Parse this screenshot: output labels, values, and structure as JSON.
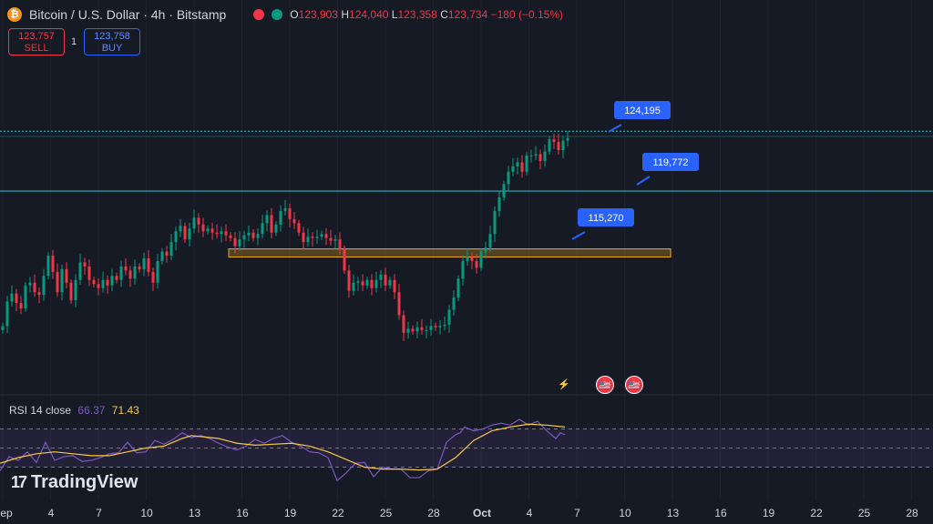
{
  "header": {
    "coin_icon": "₿",
    "title": "Bitcoin / U.S. Dollar · 4h · Bitstamp",
    "ohlc": {
      "o_label": "O",
      "o": "123,903",
      "h_label": "H",
      "h": "124,040",
      "l_label": "L",
      "l": "123,358",
      "c_label": "C",
      "c": "123,734",
      "change": "−180 (−0.15%)"
    }
  },
  "trade": {
    "sell_price": "123,757",
    "sell_label": "SELL",
    "qty": "1",
    "buy_price": "123,758",
    "buy_label": "BUY"
  },
  "rsi": {
    "name": "RSI 14 close",
    "value": "66.37",
    "ma_value": "71.43"
  },
  "logo": {
    "text": "TradingView",
    "mark": "17"
  },
  "events": {
    "a": "⚡",
    "b": "🇺🇸",
    "c": "🇺🇸"
  },
  "axis": {
    "labels": [
      "ep",
      "4",
      "7",
      "10",
      "13",
      "16",
      "19",
      "22",
      "25",
      "28",
      "Oct",
      "4",
      "7",
      "10",
      "13",
      "16",
      "19",
      "22",
      "25",
      "28"
    ]
  },
  "colors": {
    "up": "#089981",
    "down": "#f23645",
    "level": "#26c6da",
    "zone": "#f0a81e",
    "rsi": "#7e57c2",
    "rsi_ma": "#f7c948",
    "tag": "#2962ff"
  },
  "chart_data": {
    "type": "candlestick",
    "title": "Bitcoin / U.S. Dollar · 4h · Bitstamp",
    "y_range": [
      107000,
      126500
    ],
    "close_path": [
      [
        0,
        109800
      ],
      [
        5,
        111600
      ],
      [
        10,
        112200
      ],
      [
        15,
        111500
      ],
      [
        20,
        111100
      ],
      [
        25,
        112800
      ],
      [
        30,
        113000
      ],
      [
        35,
        112300
      ],
      [
        40,
        112100
      ],
      [
        45,
        113500
      ],
      [
        50,
        115000
      ],
      [
        55,
        113800
      ],
      [
        60,
        112300
      ],
      [
        65,
        114000
      ],
      [
        70,
        113000
      ],
      [
        75,
        111700
      ],
      [
        80,
        113200
      ],
      [
        85,
        114500
      ],
      [
        90,
        114200
      ],
      [
        95,
        113200
      ],
      [
        100,
        112900
      ],
      [
        105,
        112600
      ],
      [
        110,
        113200
      ],
      [
        115,
        112800
      ],
      [
        120,
        113500
      ],
      [
        125,
        113200
      ],
      [
        130,
        114200
      ],
      [
        135,
        113900
      ],
      [
        140,
        113300
      ],
      [
        145,
        114200
      ],
      [
        150,
        114000
      ],
      [
        155,
        114800
      ],
      [
        160,
        113800
      ],
      [
        165,
        113000
      ],
      [
        170,
        114600
      ],
      [
        175,
        115300
      ],
      [
        180,
        115000
      ],
      [
        185,
        116000
      ],
      [
        190,
        116800
      ],
      [
        195,
        117200
      ],
      [
        200,
        116200
      ],
      [
        205,
        117000
      ],
      [
        210,
        117800
      ],
      [
        215,
        117300
      ],
      [
        220,
        116800
      ],
      [
        225,
        117000
      ],
      [
        230,
        116700
      ],
      [
        235,
        116600
      ],
      [
        240,
        116800
      ],
      [
        245,
        116500
      ],
      [
        250,
        116300
      ],
      [
        255,
        115700
      ],
      [
        260,
        116200
      ],
      [
        265,
        116500
      ],
      [
        270,
        116700
      ],
      [
        275,
        116300
      ],
      [
        280,
        116600
      ],
      [
        285,
        117400
      ],
      [
        290,
        118000
      ],
      [
        295,
        116700
      ],
      [
        300,
        117300
      ],
      [
        305,
        118300
      ],
      [
        310,
        118500
      ],
      [
        315,
        117700
      ],
      [
        320,
        117400
      ],
      [
        325,
        116700
      ],
      [
        330,
        116000
      ],
      [
        335,
        116400
      ],
      [
        340,
        116300
      ],
      [
        345,
        116400
      ],
      [
        350,
        116600
      ],
      [
        355,
        116300
      ],
      [
        360,
        116100
      ],
      [
        365,
        116200
      ],
      [
        370,
        115500
      ],
      [
        375,
        113900
      ],
      [
        380,
        112400
      ],
      [
        385,
        113000
      ],
      [
        390,
        113100
      ],
      [
        395,
        112800
      ],
      [
        400,
        113200
      ],
      [
        405,
        112600
      ],
      [
        410,
        113200
      ],
      [
        415,
        113600
      ],
      [
        420,
        112800
      ],
      [
        425,
        113200
      ],
      [
        430,
        112300
      ],
      [
        435,
        110600
      ],
      [
        440,
        109300
      ],
      [
        445,
        109600
      ],
      [
        450,
        109400
      ],
      [
        455,
        109700
      ],
      [
        460,
        109500
      ],
      [
        465,
        109500
      ],
      [
        470,
        109800
      ],
      [
        475,
        109700
      ],
      [
        480,
        109800
      ],
      [
        485,
        109900
      ],
      [
        490,
        111000
      ],
      [
        495,
        111900
      ],
      [
        500,
        113300
      ],
      [
        505,
        114600
      ],
      [
        510,
        114900
      ],
      [
        515,
        114600
      ],
      [
        520,
        114100
      ],
      [
        525,
        115300
      ],
      [
        530,
        115600
      ],
      [
        535,
        116600
      ],
      [
        540,
        118300
      ],
      [
        545,
        119300
      ],
      [
        550,
        120300
      ],
      [
        555,
        121200
      ],
      [
        560,
        121600
      ],
      [
        565,
        121900
      ],
      [
        570,
        121200
      ],
      [
        575,
        122400
      ],
      [
        580,
        122400
      ],
      [
        585,
        122500
      ],
      [
        590,
        122000
      ],
      [
        595,
        122700
      ],
      [
        600,
        123600
      ],
      [
        605,
        123400
      ],
      [
        610,
        122800
      ],
      [
        615,
        123500
      ],
      [
        620,
        123700
      ]
    ],
    "levels": [
      124195,
      119772,
      115270
    ],
    "zone": [
      114900,
      115500
    ],
    "callouts": [
      {
        "label": "124,195",
        "value": 124195
      },
      {
        "label": "119,772",
        "value": 119772
      },
      {
        "label": "115,270",
        "value": 115270
      }
    ],
    "rsi_series": [
      [
        0,
        26
      ],
      [
        10,
        41
      ],
      [
        20,
        37
      ],
      [
        30,
        46
      ],
      [
        40,
        35
      ],
      [
        50,
        56
      ],
      [
        60,
        37
      ],
      [
        70,
        41
      ],
      [
        80,
        42
      ],
      [
        90,
        36
      ],
      [
        100,
        37
      ],
      [
        110,
        40
      ],
      [
        120,
        44
      ],
      [
        130,
        45
      ],
      [
        140,
        56
      ],
      [
        150,
        45
      ],
      [
        160,
        46
      ],
      [
        170,
        58
      ],
      [
        180,
        54
      ],
      [
        190,
        59
      ],
      [
        200,
        66
      ],
      [
        210,
        61
      ],
      [
        220,
        63
      ],
      [
        230,
        60
      ],
      [
        240,
        55
      ],
      [
        250,
        51
      ],
      [
        260,
        48
      ],
      [
        270,
        52
      ],
      [
        280,
        59
      ],
      [
        290,
        55
      ],
      [
        300,
        60
      ],
      [
        310,
        63
      ],
      [
        320,
        56
      ],
      [
        330,
        52
      ],
      [
        340,
        46
      ],
      [
        350,
        45
      ],
      [
        360,
        40
      ],
      [
        370,
        16
      ],
      [
        380,
        24
      ],
      [
        390,
        34
      ],
      [
        400,
        35
      ],
      [
        410,
        20
      ],
      [
        420,
        30
      ],
      [
        430,
        28
      ],
      [
        440,
        28
      ],
      [
        450,
        19
      ],
      [
        460,
        19
      ],
      [
        470,
        26
      ],
      [
        480,
        28
      ],
      [
        490,
        56
      ],
      [
        500,
        64
      ],
      [
        505,
        66
      ],
      [
        510,
        72
      ],
      [
        520,
        68
      ],
      [
        530,
        70
      ],
      [
        540,
        74
      ],
      [
        550,
        76
      ],
      [
        560,
        74
      ],
      [
        570,
        80
      ],
      [
        580,
        74
      ],
      [
        590,
        78
      ],
      [
        600,
        68
      ],
      [
        610,
        60
      ],
      [
        615,
        66
      ],
      [
        620,
        64
      ]
    ],
    "rsi_ma": [
      [
        0,
        34
      ],
      [
        20,
        40
      ],
      [
        40,
        44
      ],
      [
        60,
        46
      ],
      [
        80,
        44
      ],
      [
        100,
        42
      ],
      [
        120,
        42
      ],
      [
        140,
        46
      ],
      [
        160,
        50
      ],
      [
        180,
        52
      ],
      [
        200,
        60
      ],
      [
        210,
        63
      ],
      [
        220,
        62
      ],
      [
        240,
        60
      ],
      [
        260,
        55
      ],
      [
        280,
        53
      ],
      [
        300,
        54
      ],
      [
        320,
        55
      ],
      [
        340,
        52
      ],
      [
        360,
        46
      ],
      [
        380,
        38
      ],
      [
        400,
        30
      ],
      [
        420,
        28
      ],
      [
        440,
        28
      ],
      [
        460,
        27
      ],
      [
        480,
        28
      ],
      [
        500,
        40
      ],
      [
        520,
        58
      ],
      [
        540,
        68
      ],
      [
        560,
        72
      ],
      [
        580,
        75
      ],
      [
        600,
        74
      ],
      [
        620,
        72
      ]
    ],
    "rsi_levels": [
      70,
      50,
      30
    ]
  }
}
